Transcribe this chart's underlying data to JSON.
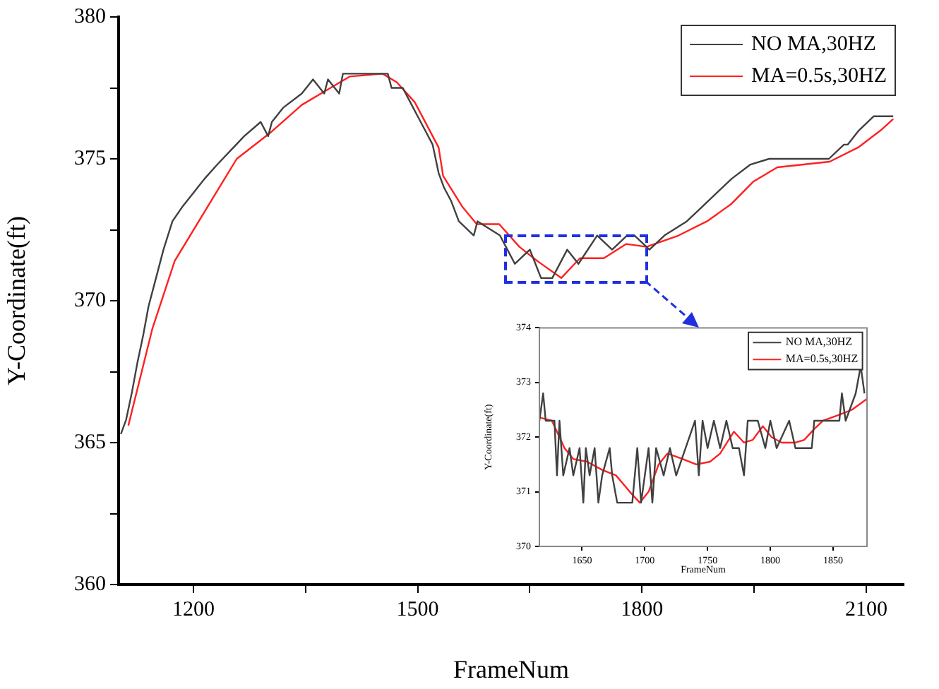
{
  "chart_data": [
    {
      "type": "line",
      "xlabel": "FrameNum",
      "ylabel": "Y-Coordinate(ft)",
      "xlim": [
        1100,
        2150
      ],
      "ylim": [
        360,
        380
      ],
      "xticks": [
        1200,
        {
          "value": 1350,
          "label": null
        },
        1500,
        {
          "value": 1650,
          "label": null
        },
        1800,
        {
          "value": 1950,
          "label": null
        },
        2100
      ],
      "yticks": [
        360,
        {
          "value": 362.5,
          "label": null
        },
        365,
        {
          "value": 367.5,
          "label": null
        },
        370,
        {
          "value": 372.5,
          "label": null
        },
        375,
        {
          "value": 377.5,
          "label": null
        },
        380
      ],
      "legend": "top right",
      "marker": "none",
      "line_style": "solid",
      "series": [
        {
          "name": "NO MA,30HZ",
          "color": "#404040",
          "x": [
            1103,
            1110,
            1118,
            1125,
            1133,
            1140,
            1150,
            1160,
            1172,
            1185,
            1200,
            1215,
            1232,
            1250,
            1268,
            1290,
            1300,
            1305,
            1320,
            1345,
            1360,
            1375,
            1380,
            1395,
            1400,
            1460,
            1465,
            1480,
            1490,
            1500,
            1510,
            1520,
            1528,
            1535,
            1545,
            1555,
            1575,
            1580,
            1610,
            1620,
            1630,
            1650,
            1665,
            1680,
            1700,
            1715,
            1740,
            1760,
            1780,
            1790,
            1810,
            1830,
            1860,
            1880,
            1900,
            1920,
            1945,
            1970,
            2050,
            2070,
            2075,
            2090,
            2110,
            2136
          ],
          "values": [
            365.3,
            365.8,
            366.8,
            367.8,
            368.8,
            369.8,
            370.8,
            371.8,
            372.8,
            373.3,
            373.8,
            374.3,
            374.8,
            375.3,
            375.8,
            376.3,
            375.8,
            376.3,
            376.8,
            377.3,
            377.8,
            377.3,
            377.8,
            377.3,
            378,
            378,
            377.5,
            377.5,
            377,
            376.5,
            376,
            375.5,
            374.5,
            374,
            373.5,
            372.8,
            372.3,
            372.8,
            372.3,
            371.8,
            371.3,
            371.8,
            370.8,
            370.8,
            371.8,
            371.3,
            372.3,
            371.8,
            372.3,
            372.3,
            371.8,
            372.3,
            372.8,
            373.3,
            373.8,
            374.3,
            374.8,
            375,
            375,
            375.5,
            375.5,
            376,
            376.5,
            376.5
          ]
        },
        {
          "name": "MA=0.5s,30HZ",
          "color": "#ff2020",
          "x": [
            1113,
            1145,
            1175,
            1221,
            1258,
            1302,
            1345,
            1377,
            1409,
            1453,
            1472,
            1496,
            1528,
            1534,
            1560,
            1579,
            1609,
            1636,
            1660,
            1692,
            1717,
            1749,
            1779,
            1806,
            1849,
            1887,
            1919,
            1949,
            1981,
            2051,
            2089,
            2119,
            2136
          ],
          "values": [
            365.6,
            369,
            371.4,
            373.4,
            375,
            375.9,
            376.9,
            377.4,
            377.9,
            378,
            377.7,
            377,
            375.4,
            374.4,
            373.3,
            372.7,
            372.7,
            371.9,
            371.4,
            370.8,
            371.5,
            371.5,
            372,
            371.9,
            372.3,
            372.8,
            373.4,
            374.2,
            374.7,
            374.9,
            375.4,
            376,
            376.4
          ]
        }
      ]
    },
    {
      "type": "line",
      "xlabel": "FrameNum",
      "ylabel": "Y-Coordinate(ft)",
      "xlim": [
        1616,
        1877
      ],
      "ylim": [
        370,
        374
      ],
      "xticks": [
        1650,
        1700,
        1750,
        1800,
        1850
      ],
      "yticks": [
        370,
        371,
        372,
        373,
        374
      ],
      "legend": "top right",
      "marker": "none",
      "line_style": "solid",
      "series": [
        {
          "name": "NO MA,30HZ",
          "color": "#404040",
          "x": [
            1616,
            1619,
            1621,
            1628,
            1630,
            1632,
            1635,
            1640,
            1643,
            1648,
            1651,
            1653,
            1656,
            1660,
            1663,
            1666,
            1672,
            1674,
            1678,
            1690,
            1694,
            1697,
            1700,
            1703,
            1706,
            1709,
            1715,
            1720,
            1725,
            1740,
            1743,
            1746,
            1750,
            1755,
            1760,
            1765,
            1770,
            1775,
            1779,
            1782,
            1790,
            1796,
            1800,
            1805,
            1815,
            1820,
            1833,
            1835,
            1855,
            1857,
            1860,
            1868,
            1872,
            1875
          ],
          "values": [
            372.3,
            372.8,
            372.3,
            372.3,
            371.3,
            372.3,
            371.3,
            371.8,
            371.3,
            371.8,
            370.8,
            371.8,
            371.3,
            371.8,
            370.8,
            371.3,
            371.8,
            371.3,
            370.8,
            370.8,
            371.8,
            370.8,
            371.3,
            371.8,
            370.8,
            371.8,
            371.3,
            371.8,
            371.3,
            372.3,
            371.3,
            372.3,
            371.8,
            372.3,
            371.8,
            372.3,
            371.8,
            371.8,
            371.3,
            372.3,
            372.3,
            371.8,
            372.3,
            371.8,
            372.3,
            371.8,
            371.8,
            372.3,
            372.3,
            372.8,
            372.3,
            372.8,
            373.3,
            372.8
          ]
        },
        {
          "name": "MA=0.5s,30HZ",
          "color": "#ff2020",
          "x": [
            1616,
            1626,
            1636,
            1643,
            1654,
            1666,
            1677,
            1688,
            1696,
            1703,
            1711,
            1718,
            1730,
            1741,
            1752,
            1760,
            1771,
            1779,
            1786,
            1794,
            1801,
            1809,
            1820,
            1827,
            1835,
            1842,
            1854,
            1865,
            1877
          ],
          "values": [
            372.36,
            372.3,
            371.8,
            371.6,
            371.55,
            371.4,
            371.3,
            371,
            370.8,
            371,
            371.5,
            371.7,
            371.6,
            371.5,
            371.55,
            371.7,
            372.1,
            371.9,
            371.95,
            372.2,
            372,
            371.9,
            371.9,
            371.95,
            372.15,
            372.3,
            372.4,
            372.5,
            372.7
          ]
        }
      ]
    }
  ]
}
